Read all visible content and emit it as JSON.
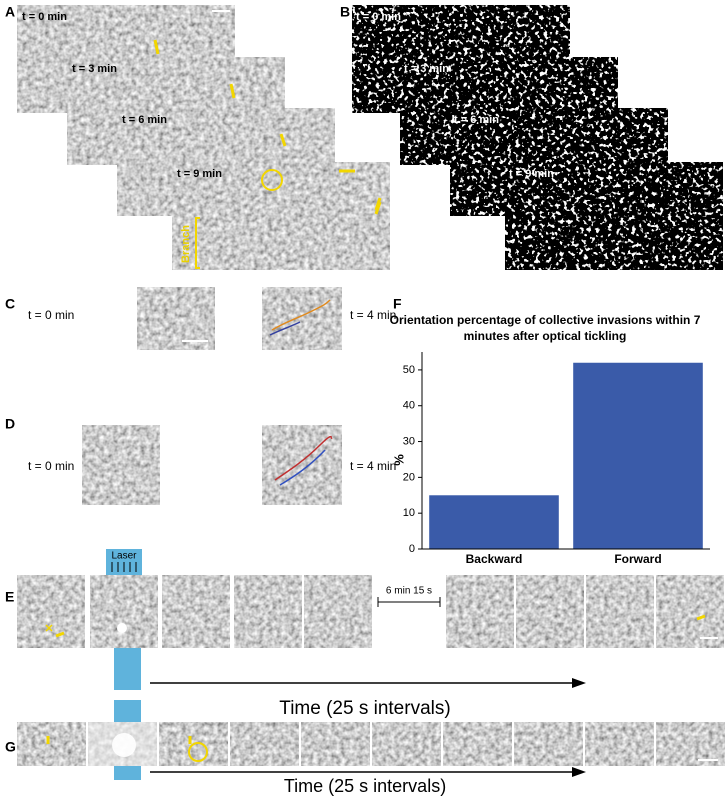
{
  "panels": {
    "A": {
      "label": "A",
      "times": [
        "t = 0 min",
        "t = 3 min",
        "t = 6 min",
        "t = 9 min"
      ],
      "branch": "Branch"
    },
    "B": {
      "label": "B",
      "times": [
        "t = 0 min",
        "t = 3 min",
        "t = 6 min",
        "t = 9 min"
      ]
    },
    "C": {
      "label": "C",
      "before": "t = 0 min",
      "after": "t = 4 min"
    },
    "D": {
      "label": "D",
      "before": "t = 0 min",
      "after": "t = 4 min"
    },
    "E": {
      "label": "E",
      "laser": "Laser",
      "gap": "6 min 15 s",
      "time_axis": "Time (25 s intervals)"
    },
    "G": {
      "label": "G",
      "time_axis": "Time (25 s intervals)"
    }
  },
  "chart_data": {
    "label": "F",
    "type": "bar",
    "title": "Orientation percentage of collective invasions within 7 minutes after optical tickling",
    "categories": [
      "Backward",
      "Forward"
    ],
    "values": [
      15,
      52
    ],
    "color": "#3a5ba9",
    "ylabel": "%",
    "ylim": [
      0,
      55
    ],
    "yticks": [
      0,
      10,
      20,
      30,
      40,
      50
    ]
  }
}
